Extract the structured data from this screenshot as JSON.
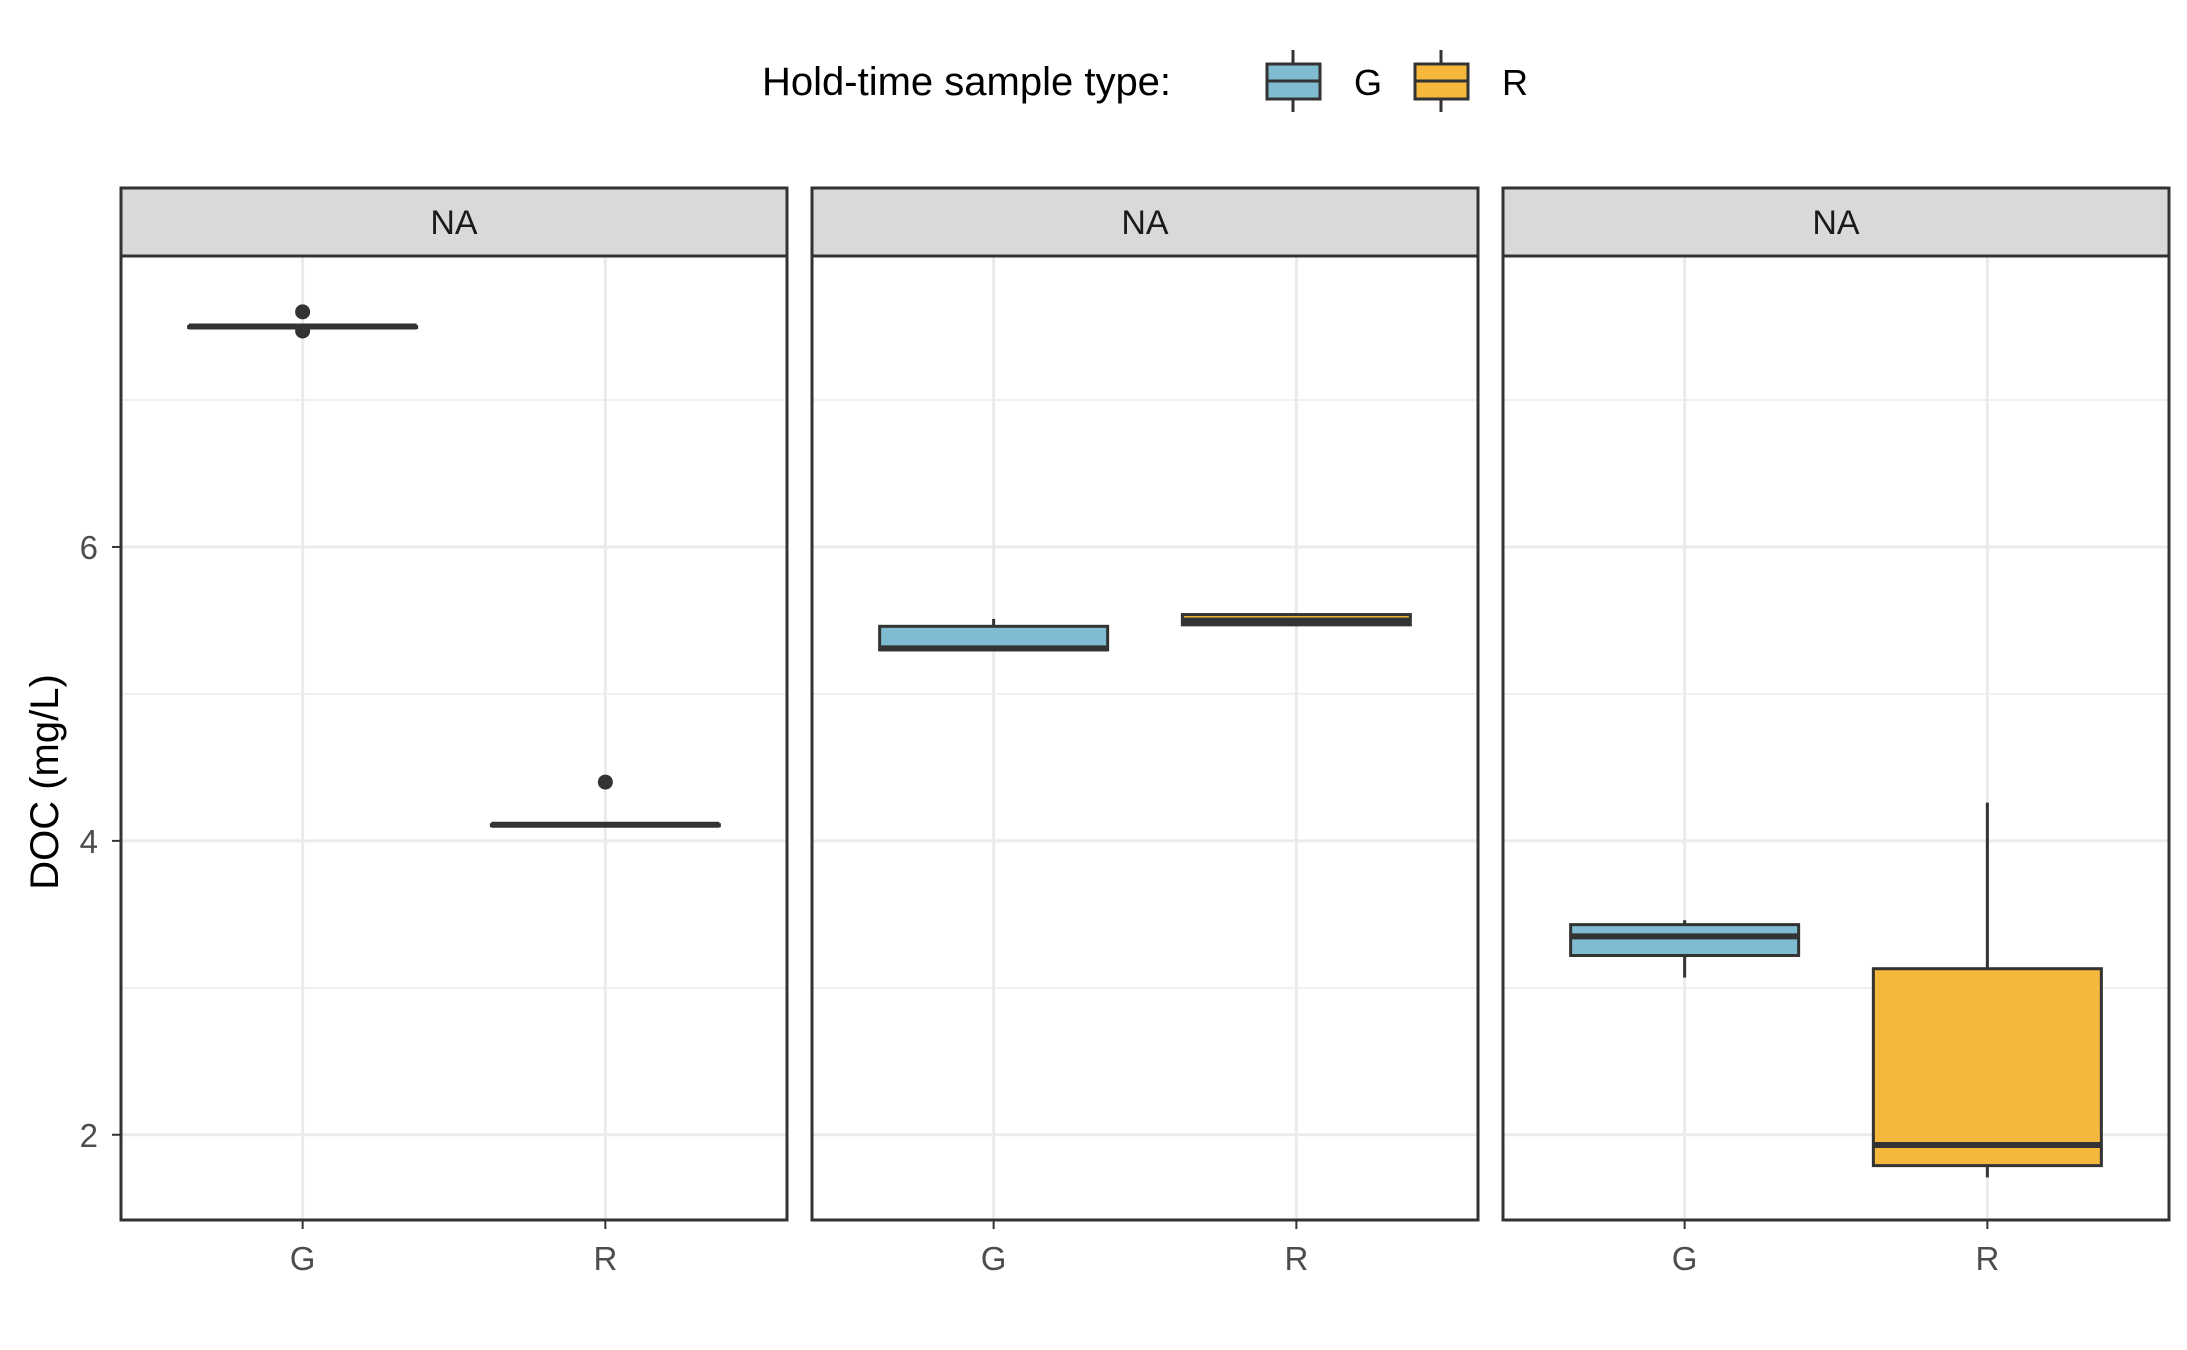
{
  "chart_data": {
    "type": "boxplot",
    "ylabel": "DOC (mg/L)",
    "xlabel": "",
    "ylim": [
      1.42,
      7.98
    ],
    "y_ticks": [
      "2",
      "4",
      "6"
    ],
    "y_tick_values": [
      2,
      4,
      6
    ],
    "y_minor_values": [
      3,
      5,
      7
    ],
    "categories": [
      "G",
      "R"
    ],
    "legend": {
      "title": "Hold-time sample type:",
      "position": "top",
      "entries": [
        {
          "key": "G",
          "label": "G",
          "color": "#7fbcd2"
        },
        {
          "key": "R",
          "label": "R",
          "color": "#f5b83d"
        }
      ]
    },
    "panels": [
      {
        "strip": "NA",
        "boxes": [
          {
            "category": "G",
            "min": 7.5,
            "q1": 7.5,
            "median": 7.5,
            "q3": 7.5,
            "max": 7.5,
            "outliers": [
              7.6,
              7.47
            ]
          },
          {
            "category": "R",
            "min": 4.11,
            "q1": 4.11,
            "median": 4.11,
            "q3": 4.11,
            "max": 4.11,
            "outliers": [
              4.4
            ]
          }
        ]
      },
      {
        "strip": "NA",
        "boxes": [
          {
            "category": "G",
            "min": 5.3,
            "q1": 5.3,
            "median": 5.31,
            "q3": 5.46,
            "max": 5.51,
            "outliers": []
          },
          {
            "category": "R",
            "min": 5.46,
            "q1": 5.47,
            "median": 5.5,
            "q3": 5.54,
            "max": 5.54,
            "outliers": []
          }
        ]
      },
      {
        "strip": "NA",
        "boxes": [
          {
            "category": "G",
            "min": 3.07,
            "q1": 3.22,
            "median": 3.35,
            "q3": 3.43,
            "max": 3.46,
            "outliers": []
          },
          {
            "category": "R",
            "min": 1.71,
            "q1": 1.79,
            "median": 1.93,
            "q3": 3.13,
            "max": 4.26,
            "outliers": []
          }
        ]
      }
    ],
    "grid": true,
    "colors": {
      "G": "#7fbcd2",
      "R": "#f5b83d",
      "outline": "#333333",
      "grid": "#ebebeb",
      "strip_bg": "#d9d9d9",
      "panel_border": "#333333"
    }
  }
}
